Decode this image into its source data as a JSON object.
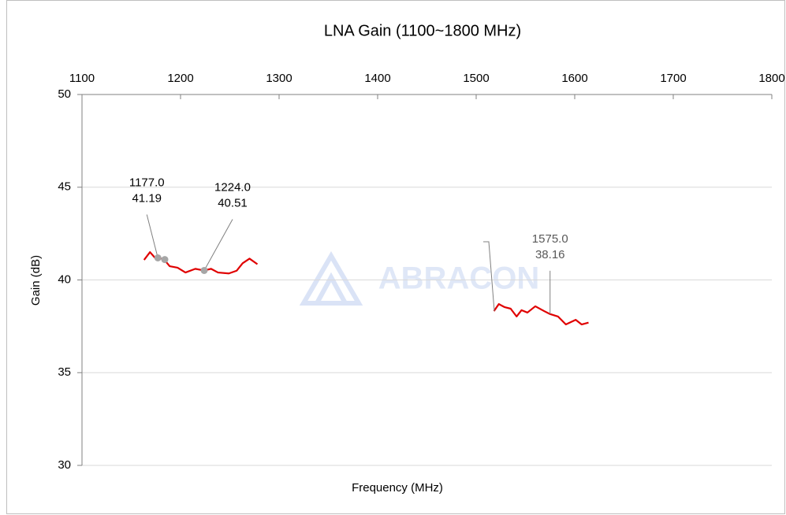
{
  "chart_data": {
    "type": "line",
    "title": "LNA Gain (1100~1800 MHz)",
    "x_label": "Frequency (MHz)",
    "y_label": "Gain (dB)",
    "watermark": "ABRACON",
    "xlim": [
      1100,
      1800
    ],
    "xticks": [
      1100,
      1200,
      1300,
      1400,
      1500,
      1600,
      1700,
      1800
    ],
    "ylim": [
      30,
      50
    ],
    "yticks": [
      30,
      35,
      40,
      45,
      50
    ],
    "grid": true,
    "series": [
      {
        "name": "Gain",
        "color": "#e00000",
        "x": [
          1163,
          1169,
          1174,
          1177,
          1183,
          1189,
          1197,
          1205,
          1215,
          1224,
          1231,
          1238,
          1249,
          1257,
          1263,
          1270,
          1278,
          null,
          1518,
          1523,
          1529,
          1535,
          1541,
          1546,
          1552,
          1560,
          1569,
          1575,
          1583,
          1591,
          1601,
          1607,
          1614
        ],
        "values": [
          41.08,
          41.5,
          41.2,
          41.19,
          41.12,
          40.74,
          40.66,
          40.4,
          40.6,
          40.51,
          40.6,
          40.4,
          40.35,
          40.5,
          40.9,
          41.15,
          40.85,
          null,
          38.32,
          38.7,
          38.53,
          38.45,
          38.03,
          38.37,
          38.24,
          38.58,
          38.32,
          38.16,
          38.03,
          37.6,
          37.85,
          37.6,
          37.7
        ]
      }
    ],
    "markers": [
      {
        "x": 1177,
        "y": 41.19,
        "x_label": "1177.0",
        "y_label": "41.19"
      },
      {
        "x": 1184,
        "y": 41.1
      },
      {
        "x": 1224,
        "y": 40.51,
        "x_label": "1224.0",
        "y_label": "40.51"
      },
      {
        "x": 1575,
        "y": 38.16,
        "x_label": "1575.0",
        "y_label": "38.16"
      }
    ]
  }
}
